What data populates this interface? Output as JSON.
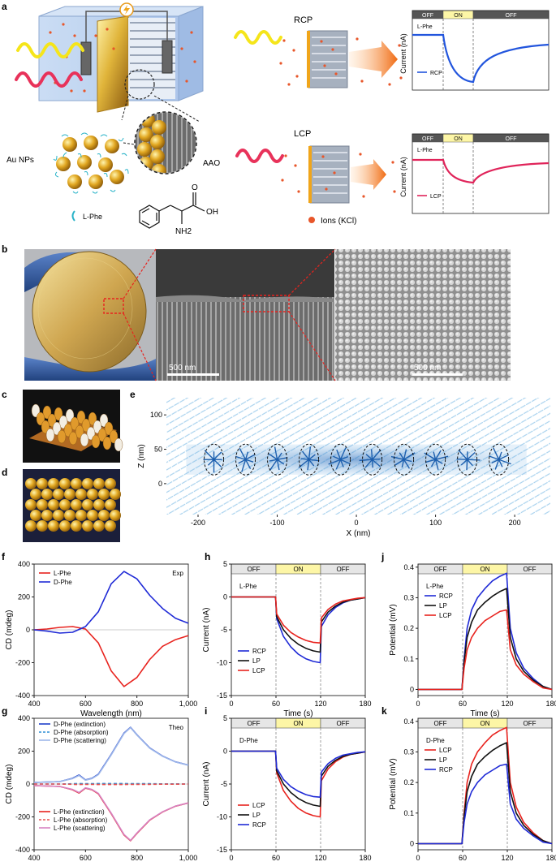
{
  "panel_letters": [
    "a",
    "b",
    "c",
    "d",
    "e",
    "f",
    "g",
    "h",
    "i",
    "j",
    "k"
  ],
  "panel_a": {
    "rcp_label": "RCP",
    "lcp_label": "LCP",
    "aunps_label": "Au NPs",
    "aao_label": "AAO",
    "lphe_legend": "L-Phe",
    "ions_legend": "Ions (KCl)",
    "molecule_oh": "OH",
    "molecule_o": "O",
    "molecule_nh2": "NH2",
    "bolt_icon": "lightning-bolt",
    "inset_top": {
      "states": [
        "OFF",
        "ON",
        "OFF"
      ],
      "ylabel": "Current (nA)",
      "tag": "L-Phe",
      "legend": "RCP",
      "color": "#2255dd"
    },
    "inset_bottom": {
      "states": [
        "OFF",
        "ON",
        "OFF"
      ],
      "ylabel": "Current (nA)",
      "tag": "L-Phe",
      "legend": "LCP",
      "color": "#e0245a"
    }
  },
  "panel_b": {
    "scale_left": "500 nm",
    "scale_right": "500 nm"
  },
  "chart_data": [
    {
      "id": "e",
      "type": "vector-field",
      "xlabel": "X (nm)",
      "ylabel": "Z (nm)",
      "xlim": [
        -240,
        245
      ],
      "ylim": [
        -45,
        125
      ],
      "xticks": [
        -200,
        -100,
        0,
        100,
        200
      ],
      "yticks": [
        0,
        50,
        100
      ],
      "particle_x": [
        -180,
        -140,
        -100,
        -60,
        -20,
        20,
        60,
        100,
        140,
        180
      ],
      "particle_z": 35
    },
    {
      "id": "f",
      "type": "line",
      "xlabel": "Wavelength (nm)",
      "ylabel": "CD (mdeg)",
      "xlim": [
        400,
        1000
      ],
      "ylim": [
        -400,
        400
      ],
      "xticks": [
        "400",
        "600",
        "800",
        "1,000"
      ],
      "yticks": [
        -400,
        -200,
        0,
        200,
        400
      ],
      "corner_label": "Exp",
      "x": [
        400,
        450,
        500,
        550,
        600,
        650,
        700,
        750,
        800,
        850,
        900,
        950,
        1000
      ],
      "series": [
        {
          "name": "L-Phe",
          "color": "#e8231e",
          "values": [
            0,
            5,
            15,
            20,
            5,
            -80,
            -250,
            -345,
            -290,
            -180,
            -100,
            -60,
            -35
          ]
        },
        {
          "name": "D-Phe",
          "color": "#1f2ad6",
          "values": [
            0,
            -8,
            -20,
            -15,
            20,
            110,
            280,
            355,
            310,
            210,
            130,
            70,
            40
          ]
        }
      ]
    },
    {
      "id": "g",
      "type": "line",
      "xlabel": "Wavelength (nm)",
      "ylabel": "CD (mdeg)",
      "xlim": [
        400,
        1000
      ],
      "ylim": [
        -400,
        400
      ],
      "xticks": [
        "400",
        "600",
        "800",
        "1,000"
      ],
      "yticks": [
        -400,
        -200,
        0,
        200,
        400
      ],
      "corner_label": "Theo",
      "x": [
        400,
        450,
        500,
        550,
        575,
        600,
        625,
        650,
        700,
        750,
        775,
        800,
        850,
        900,
        950,
        1000
      ],
      "series": [
        {
          "name": "D-Phe (extinction)",
          "color": "#1f3fc9",
          "style": "solid",
          "values": [
            10,
            12,
            15,
            35,
            55,
            25,
            35,
            60,
            180,
            310,
            345,
            300,
            220,
            170,
            135,
            115
          ]
        },
        {
          "name": "D-Phe (absorption)",
          "color": "#2f8fd6",
          "style": "dashed",
          "values": [
            0,
            0,
            0,
            2,
            3,
            2,
            2,
            3,
            3,
            3,
            2,
            2,
            2,
            1,
            1,
            0
          ]
        },
        {
          "name": "D-Phe (scattering)",
          "color": "#9fb8ea",
          "style": "solid",
          "values": [
            10,
            12,
            15,
            33,
            52,
            23,
            33,
            57,
            177,
            307,
            343,
            298,
            218,
            169,
            134,
            115
          ]
        },
        {
          "name": "L-Phe (extinction)",
          "color": "#e8231e",
          "style": "solid",
          "values": [
            -10,
            -12,
            -15,
            -35,
            -55,
            -25,
            -35,
            -60,
            -180,
            -310,
            -345,
            -300,
            -220,
            -170,
            -135,
            -115
          ]
        },
        {
          "name": "L-Phe (absorption)",
          "color": "#e85050",
          "style": "dashed",
          "values": [
            0,
            0,
            0,
            -2,
            -3,
            -2,
            -2,
            -3,
            -3,
            -3,
            -2,
            -2,
            -2,
            -1,
            -1,
            0
          ]
        },
        {
          "name": "L-Phe (scattering)",
          "color": "#d783c2",
          "style": "solid",
          "values": [
            -10,
            -12,
            -15,
            -33,
            -52,
            -23,
            -33,
            -57,
            -177,
            -307,
            -343,
            -298,
            -218,
            -169,
            -134,
            -115
          ]
        }
      ]
    },
    {
      "id": "h",
      "type": "line",
      "xlabel": "Time (s)",
      "ylabel": "Current (nA)",
      "xlim": [
        0,
        180
      ],
      "ylim": [
        -15,
        5
      ],
      "xticks": [
        0,
        60,
        120,
        180
      ],
      "yticks": [
        -15,
        -10,
        -5,
        0,
        5
      ],
      "states": [
        "OFF",
        "ON",
        "OFF"
      ],
      "corner_label": "L-Phe",
      "series": [
        {
          "name": "RCP",
          "color": "#1f2ad6",
          "values": [
            0,
            0,
            0,
            -3.3,
            -6,
            -7.6,
            -8.7,
            -9.4,
            -9.8,
            -10,
            -4.5,
            -2.7,
            -1.6,
            -0.9,
            -0.5,
            -0.3,
            -0.1
          ],
          "x": [
            0,
            30,
            59.5,
            61,
            70,
            80,
            90,
            100,
            110,
            119.5,
            121,
            130,
            140,
            150,
            160,
            170,
            180
          ]
        },
        {
          "name": "LP",
          "color": "#111111",
          "values": [
            0,
            0,
            0,
            -3,
            -5,
            -6.3,
            -7.2,
            -7.8,
            -8.2,
            -8.4,
            -3.8,
            -2.3,
            -1.4,
            -0.8,
            -0.5,
            -0.3,
            -0.1
          ],
          "x": [
            0,
            30,
            59.5,
            61,
            70,
            80,
            90,
            100,
            110,
            119.5,
            121,
            130,
            140,
            150,
            160,
            170,
            180
          ]
        },
        {
          "name": "LCP",
          "color": "#e8231e",
          "values": [
            0,
            0,
            0,
            -2.6,
            -4.3,
            -5.4,
            -6.1,
            -6.6,
            -6.9,
            -7,
            -3.2,
            -1.9,
            -1.1,
            -0.6,
            -0.4,
            -0.2,
            -0.1
          ],
          "x": [
            0,
            30,
            59.5,
            61,
            70,
            80,
            90,
            100,
            110,
            119.5,
            121,
            130,
            140,
            150,
            160,
            170,
            180
          ]
        }
      ]
    },
    {
      "id": "i",
      "type": "line",
      "xlabel": "Time (s)",
      "ylabel": "Current (nA)",
      "xlim": [
        0,
        180
      ],
      "ylim": [
        -15,
        5
      ],
      "xticks": [
        0,
        60,
        120,
        180
      ],
      "yticks": [
        -15,
        -10,
        -5,
        0,
        5
      ],
      "states": [
        "OFF",
        "ON",
        "OFF"
      ],
      "corner_label": "D-Phe",
      "series": [
        {
          "name": "LCP",
          "color": "#e8231e",
          "values": [
            0,
            0,
            0,
            -3.3,
            -6,
            -7.6,
            -8.7,
            -9.4,
            -9.8,
            -10,
            -4.5,
            -2.7,
            -1.6,
            -0.9,
            -0.5,
            -0.3,
            -0.1
          ],
          "x": [
            0,
            30,
            59.5,
            61,
            70,
            80,
            90,
            100,
            110,
            119.5,
            121,
            130,
            140,
            150,
            160,
            170,
            180
          ]
        },
        {
          "name": "LP",
          "color": "#111111",
          "values": [
            0,
            0,
            0,
            -3,
            -5,
            -6.3,
            -7.2,
            -7.8,
            -8.2,
            -8.4,
            -3.8,
            -2.3,
            -1.4,
            -0.8,
            -0.5,
            -0.3,
            -0.1
          ],
          "x": [
            0,
            30,
            59.5,
            61,
            70,
            80,
            90,
            100,
            110,
            119.5,
            121,
            130,
            140,
            150,
            160,
            170,
            180
          ]
        },
        {
          "name": "RCP",
          "color": "#1f2ad6",
          "values": [
            0,
            0,
            0,
            -2.6,
            -4.3,
            -5.4,
            -6.1,
            -6.6,
            -6.9,
            -7,
            -3.2,
            -1.9,
            -1.1,
            -0.6,
            -0.4,
            -0.2,
            -0.1
          ],
          "x": [
            0,
            30,
            59.5,
            61,
            70,
            80,
            90,
            100,
            110,
            119.5,
            121,
            130,
            140,
            150,
            160,
            170,
            180
          ]
        }
      ]
    },
    {
      "id": "j",
      "type": "line",
      "xlabel": "Time (s)",
      "ylabel": "Potential (mV)",
      "xlim": [
        0,
        180
      ],
      "ylim": [
        -0.02,
        0.41
      ],
      "xticks": [
        0,
        60,
        120,
        180
      ],
      "yticks": [
        0,
        0.1,
        0.2,
        0.3,
        0.4
      ],
      "states": [
        "OFF",
        "ON",
        "OFF"
      ],
      "corner_label": "L-Phe",
      "series": [
        {
          "name": "RCP",
          "color": "#1f2ad6",
          "values": [
            0,
            0,
            0,
            0.1,
            0.2,
            0.26,
            0.3,
            0.33,
            0.355,
            0.37,
            0.38,
            0.2,
            0.12,
            0.07,
            0.035,
            0.01,
            0
          ],
          "x": [
            0,
            30,
            59,
            62,
            66,
            72,
            80,
            90,
            100,
            110,
            119,
            124,
            132,
            142,
            155,
            168,
            180
          ]
        },
        {
          "name": "LP",
          "color": "#111111",
          "values": [
            0,
            0,
            0,
            0.09,
            0.17,
            0.22,
            0.26,
            0.285,
            0.305,
            0.32,
            0.33,
            0.17,
            0.1,
            0.06,
            0.03,
            0.01,
            0
          ],
          "x": [
            0,
            30,
            59,
            62,
            66,
            72,
            80,
            90,
            100,
            110,
            119,
            124,
            132,
            142,
            155,
            168,
            180
          ]
        },
        {
          "name": "LCP",
          "color": "#e8231e",
          "values": [
            0,
            0,
            0,
            0.07,
            0.13,
            0.17,
            0.2,
            0.225,
            0.24,
            0.255,
            0.26,
            0.13,
            0.08,
            0.05,
            0.025,
            0.005,
            0
          ],
          "x": [
            0,
            30,
            59,
            62,
            66,
            72,
            80,
            90,
            100,
            110,
            119,
            124,
            132,
            142,
            155,
            168,
            180
          ]
        }
      ]
    },
    {
      "id": "k",
      "type": "line",
      "xlabel": "Time (s)",
      "ylabel": "Potential (mV)",
      "xlim": [
        0,
        180
      ],
      "ylim": [
        -0.02,
        0.41
      ],
      "xticks": [
        0,
        60,
        120,
        180
      ],
      "yticks": [
        0,
        0.1,
        0.2,
        0.3,
        0.4
      ],
      "states": [
        "OFF",
        "ON",
        "OFF"
      ],
      "corner_label": "D-Phe",
      "series": [
        {
          "name": "LCP",
          "color": "#e8231e",
          "values": [
            0,
            0,
            0,
            0.1,
            0.2,
            0.26,
            0.3,
            0.33,
            0.355,
            0.37,
            0.38,
            0.2,
            0.12,
            0.07,
            0.035,
            0.01,
            0
          ],
          "x": [
            0,
            30,
            59,
            62,
            66,
            72,
            80,
            90,
            100,
            110,
            119,
            124,
            132,
            142,
            155,
            168,
            180
          ]
        },
        {
          "name": "LP",
          "color": "#111111",
          "values": [
            0,
            0,
            0,
            0.09,
            0.17,
            0.22,
            0.26,
            0.285,
            0.305,
            0.32,
            0.33,
            0.17,
            0.1,
            0.06,
            0.03,
            0.01,
            0
          ],
          "x": [
            0,
            30,
            59,
            62,
            66,
            72,
            80,
            90,
            100,
            110,
            119,
            124,
            132,
            142,
            155,
            168,
            180
          ]
        },
        {
          "name": "RCP",
          "color": "#1f2ad6",
          "values": [
            0,
            0,
            0,
            0.07,
            0.13,
            0.17,
            0.2,
            0.225,
            0.24,
            0.255,
            0.26,
            0.13,
            0.08,
            0.05,
            0.025,
            0.005,
            0
          ],
          "x": [
            0,
            30,
            59,
            62,
            66,
            72,
            80,
            90,
            100,
            110,
            119,
            124,
            132,
            142,
            155,
            168,
            180
          ]
        }
      ]
    }
  ]
}
